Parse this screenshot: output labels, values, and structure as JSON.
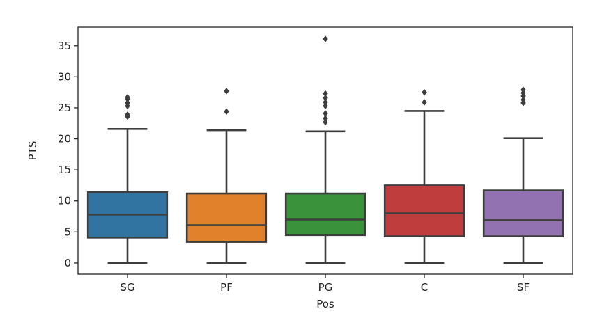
{
  "chart_data": {
    "type": "box",
    "title": "",
    "xlabel": "Pos",
    "ylabel": "PTS",
    "ylim": [
      -1.8,
      38
    ],
    "yticks": [
      0,
      5,
      10,
      15,
      20,
      25,
      30,
      35
    ],
    "ytick_labels": [
      "0",
      "5",
      "10",
      "15",
      "20",
      "25",
      "30",
      "35"
    ],
    "grid": false,
    "categories": [
      "SG",
      "PF",
      "PG",
      "C",
      "SF"
    ],
    "boxes": [
      {
        "name": "SG",
        "color": "#3274a1",
        "whisker_low": 0.0,
        "q1": 4.1,
        "median": 7.8,
        "q3": 11.4,
        "whisker_high": 21.6,
        "outliers": [
          23.6,
          23.9,
          25.3,
          25.8,
          26.4,
          26.7
        ]
      },
      {
        "name": "PF",
        "color": "#e1812c",
        "whisker_low": 0.0,
        "q1": 3.4,
        "median": 6.1,
        "q3": 11.2,
        "whisker_high": 21.4,
        "outliers": [
          24.4,
          27.7
        ]
      },
      {
        "name": "PG",
        "color": "#3a923a",
        "whisker_low": 0.0,
        "q1": 4.5,
        "median": 7.0,
        "q3": 11.2,
        "whisker_high": 21.2,
        "outliers": [
          22.7,
          23.3,
          24.1,
          25.3,
          25.9,
          26.6,
          27.3,
          36.1
        ]
      },
      {
        "name": "C",
        "color": "#c03d3e",
        "whisker_low": 0.0,
        "q1": 4.3,
        "median": 8.0,
        "q3": 12.5,
        "whisker_high": 24.5,
        "outliers": [
          25.9,
          27.5
        ]
      },
      {
        "name": "SF",
        "color": "#9372b2",
        "whisker_low": 0.0,
        "q1": 4.3,
        "median": 6.9,
        "q3": 11.7,
        "whisker_high": 20.1,
        "outliers": [
          25.8,
          26.3,
          26.9,
          27.4,
          27.9
        ]
      }
    ]
  }
}
